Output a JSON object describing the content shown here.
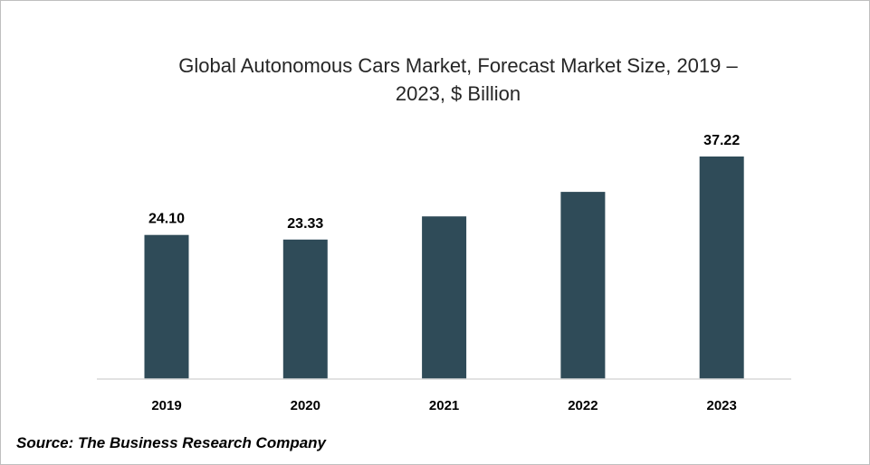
{
  "chart_data": {
    "type": "bar",
    "title_lines": [
      "Global Autonomous Cars Market, Forecast Market Size, 2019 –",
      "2023, $ Billion"
    ],
    "categories": [
      "2019",
      "2020",
      "2021",
      "2022",
      "2023"
    ],
    "values": [
      24.1,
      23.33,
      27.2,
      31.3,
      37.22
    ],
    "data_labels": [
      "24.10",
      "23.33",
      "",
      "",
      "37.22"
    ],
    "ylim": [
      0,
      40
    ],
    "xlabel": "",
    "ylabel": "",
    "grid": false,
    "legend": "none",
    "bar_color": "#2f4b58"
  },
  "source": "Source: The Business Research Company"
}
